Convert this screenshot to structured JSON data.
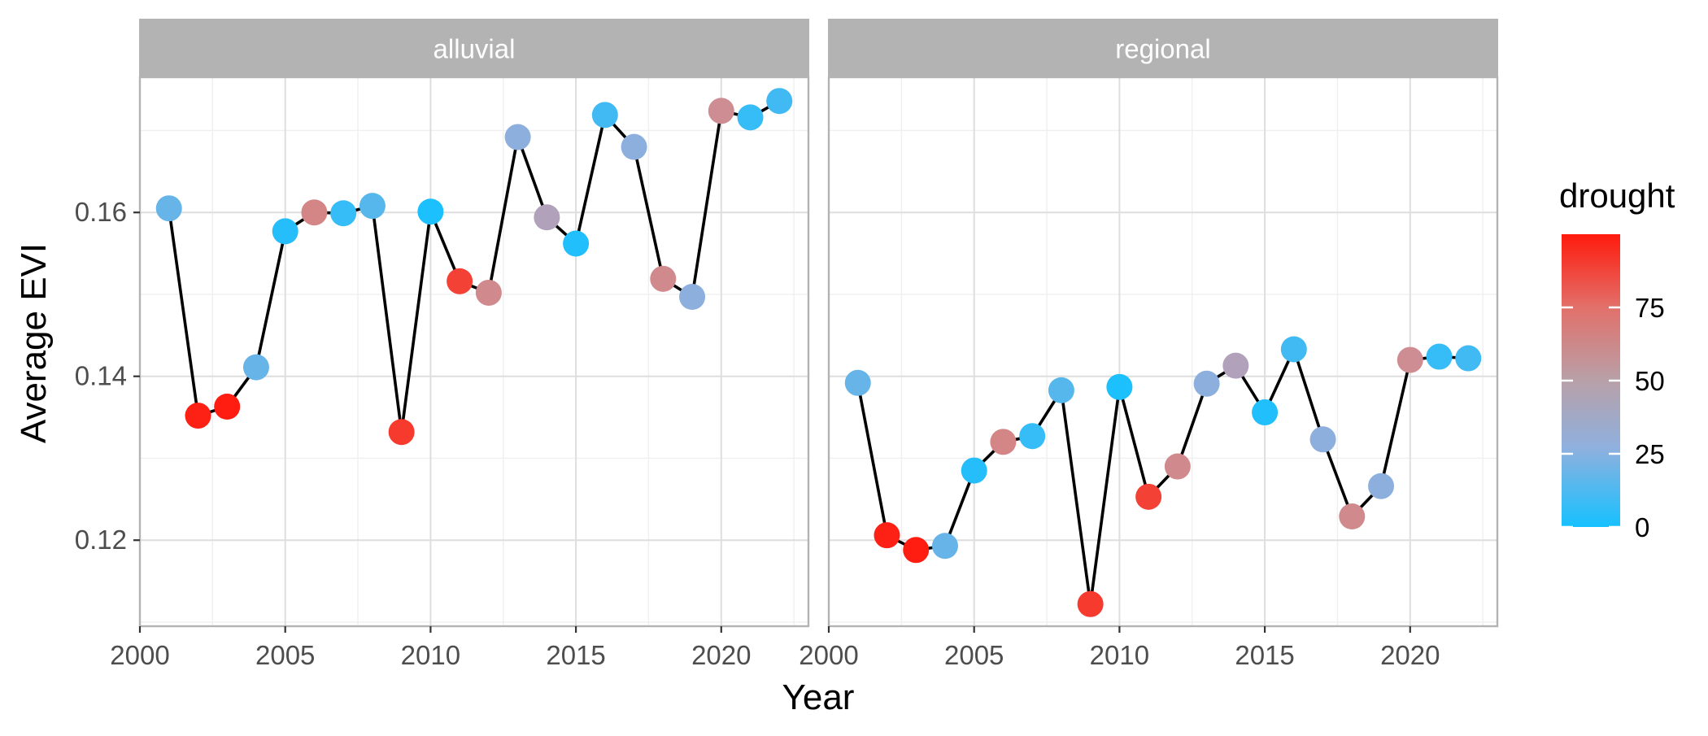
{
  "chart_data": {
    "type": "line",
    "xlabel": "Year",
    "ylabel": "Average EVI",
    "xlim": [
      2000,
      2023
    ],
    "ylim": [
      0.1095,
      0.1765
    ],
    "x_ticks": [
      2000,
      2005,
      2010,
      2015,
      2020
    ],
    "y_ticks": [
      0.12,
      0.14,
      0.16
    ],
    "grid": true,
    "legend": {
      "title": "drought",
      "position": "right",
      "ticks": [
        0,
        25,
        50,
        75
      ],
      "range": [
        0,
        100
      ],
      "low_color": "#16c1ff",
      "mid_color": "#a5a1bd",
      "high_color": "#ff1a0d"
    },
    "panels": [
      {
        "name": "alluvial",
        "points": [
          {
            "x": 2001,
            "y": 0.1605,
            "drought": 15
          },
          {
            "x": 2002,
            "y": 0.1352,
            "drought": 98
          },
          {
            "x": 2003,
            "y": 0.1363,
            "drought": 99
          },
          {
            "x": 2004,
            "y": 0.1411,
            "drought": 15
          },
          {
            "x": 2005,
            "y": 0.1577,
            "drought": 3
          },
          {
            "x": 2006,
            "y": 0.16,
            "drought": 60
          },
          {
            "x": 2007,
            "y": 0.1599,
            "drought": 6
          },
          {
            "x": 2008,
            "y": 0.1608,
            "drought": 12
          },
          {
            "x": 2009,
            "y": 0.1332,
            "drought": 90
          },
          {
            "x": 2010,
            "y": 0.1601,
            "drought": 1
          },
          {
            "x": 2011,
            "y": 0.1516,
            "drought": 88
          },
          {
            "x": 2012,
            "y": 0.1502,
            "drought": 57
          },
          {
            "x": 2013,
            "y": 0.1692,
            "drought": 22
          },
          {
            "x": 2014,
            "y": 0.1594,
            "drought": 38
          },
          {
            "x": 2015,
            "y": 0.1562,
            "drought": 2
          },
          {
            "x": 2016,
            "y": 0.1719,
            "drought": 8
          },
          {
            "x": 2017,
            "y": 0.168,
            "drought": 22
          },
          {
            "x": 2018,
            "y": 0.1519,
            "drought": 57
          },
          {
            "x": 2019,
            "y": 0.1497,
            "drought": 22
          },
          {
            "x": 2020,
            "y": 0.1724,
            "drought": 55
          },
          {
            "x": 2021,
            "y": 0.1716,
            "drought": 6
          },
          {
            "x": 2022,
            "y": 0.1736,
            "drought": 8
          }
        ]
      },
      {
        "name": "regional",
        "points": [
          {
            "x": 2001,
            "y": 0.1392,
            "drought": 15
          },
          {
            "x": 2002,
            "y": 0.1206,
            "drought": 98
          },
          {
            "x": 2003,
            "y": 0.1188,
            "drought": 99
          },
          {
            "x": 2004,
            "y": 0.1193,
            "drought": 15
          },
          {
            "x": 2005,
            "y": 0.1285,
            "drought": 3
          },
          {
            "x": 2006,
            "y": 0.132,
            "drought": 60
          },
          {
            "x": 2007,
            "y": 0.1327,
            "drought": 6
          },
          {
            "x": 2008,
            "y": 0.1383,
            "drought": 12
          },
          {
            "x": 2009,
            "y": 0.1122,
            "drought": 90
          },
          {
            "x": 2010,
            "y": 0.1387,
            "drought": 1
          },
          {
            "x": 2011,
            "y": 0.1253,
            "drought": 88
          },
          {
            "x": 2012,
            "y": 0.129,
            "drought": 57
          },
          {
            "x": 2013,
            "y": 0.1391,
            "drought": 22
          },
          {
            "x": 2014,
            "y": 0.1413,
            "drought": 38
          },
          {
            "x": 2015,
            "y": 0.1356,
            "drought": 2
          },
          {
            "x": 2016,
            "y": 0.1433,
            "drought": 8
          },
          {
            "x": 2017,
            "y": 0.1323,
            "drought": 22
          },
          {
            "x": 2018,
            "y": 0.1229,
            "drought": 57
          },
          {
            "x": 2019,
            "y": 0.1266,
            "drought": 22
          },
          {
            "x": 2020,
            "y": 0.142,
            "drought": 55
          },
          {
            "x": 2021,
            "y": 0.1424,
            "drought": 6
          },
          {
            "x": 2022,
            "y": 0.1422,
            "drought": 8
          }
        ]
      }
    ]
  }
}
